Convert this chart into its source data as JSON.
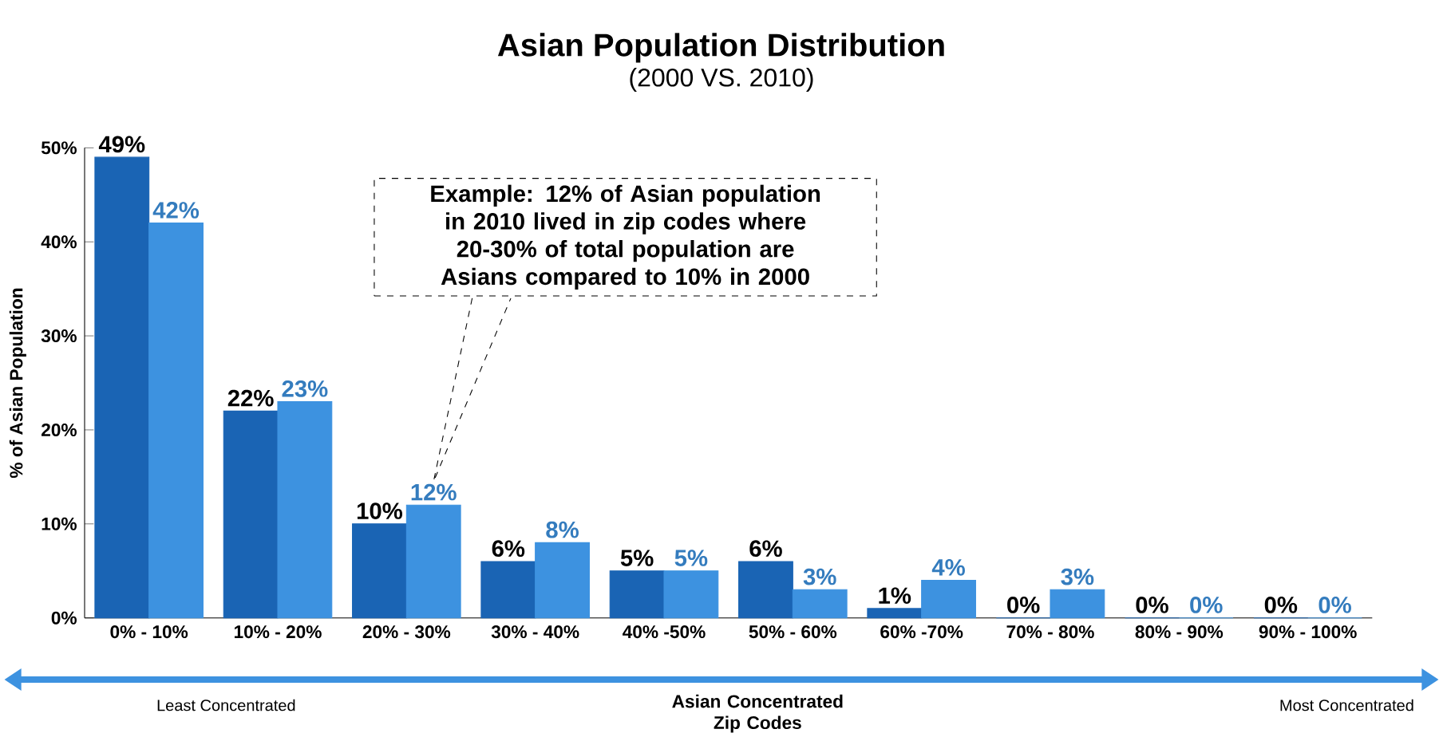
{
  "chart_data": {
    "type": "bar",
    "title": "Asian Population Distribution",
    "subtitle": "(2000 VS. 2010)",
    "xlabel": "Asian Concentrated Zip Codes",
    "ylabel": "% of Asian Population",
    "categories": [
      "0% - 10%",
      "10% - 20%",
      "20% - 30%",
      "30% - 40%",
      "40% -50%",
      "50% - 60%",
      "60% -70%",
      "70% - 80%",
      "80% - 90%",
      "90% - 100%"
    ],
    "series": [
      {
        "color": "#1a64b4",
        "values": [
          49,
          22,
          10,
          6,
          5,
          6,
          1,
          0,
          0,
          0
        ],
        "value_labels": [
          "49%",
          "22%",
          "10%",
          "6%",
          "5%",
          "6%",
          "1%",
          "0%",
          "0%",
          "0%"
        ]
      },
      {
        "color": "#3d92e0",
        "values": [
          42,
          23,
          12,
          8,
          5,
          3,
          4,
          3,
          0,
          0
        ],
        "value_labels": [
          "42%",
          "23%",
          "12%",
          "8%",
          "5%",
          "3%",
          "4%",
          "3%",
          "0%",
          "0%"
        ]
      }
    ],
    "ylim": [
      0,
      50
    ],
    "yticks": [
      {
        "value": 0,
        "label": "0%"
      },
      {
        "value": 10,
        "label": "10%"
      },
      {
        "value": 20,
        "label": "20%"
      },
      {
        "value": 30,
        "label": "30%"
      },
      {
        "value": 40,
        "label": "40%"
      },
      {
        "value": 50,
        "label": "50%"
      }
    ],
    "grid": false,
    "annotations": [
      "Example: 12% of Asian population in 2010 lived in zip codes where 20-30% of total population are Asians compared to 10% in 2000",
      "Least Concentrated",
      "Most Concentrated"
    ]
  }
}
